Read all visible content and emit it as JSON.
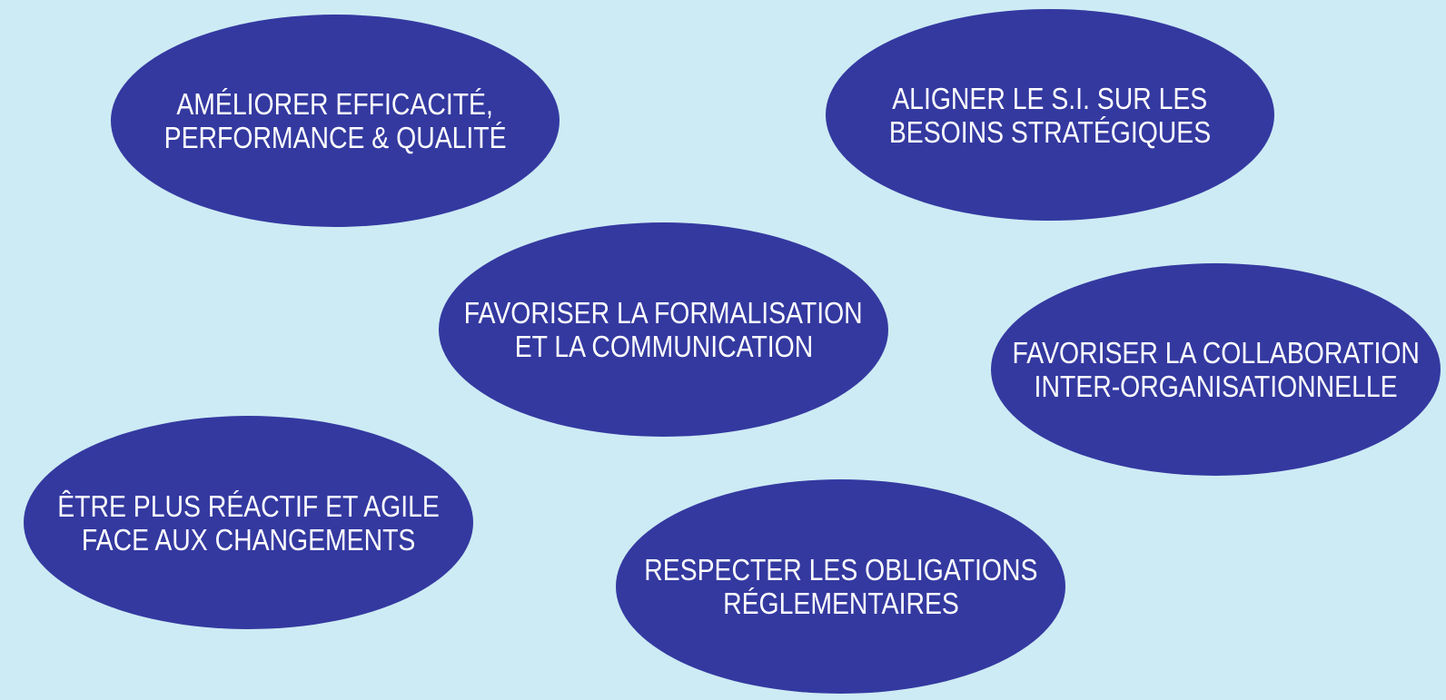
{
  "colors": {
    "background": "#cdebf4",
    "bubble_fill": "#3439a0",
    "bubble_text": "#ffffff"
  },
  "bubbles": [
    {
      "id": "ameliorer",
      "lines": [
        "AMÉLIORER EFFICACITÉ,",
        "PERFORMANCE & QUALITÉ"
      ]
    },
    {
      "id": "aligner",
      "lines": [
        "ALIGNER LE S.I. SUR LES",
        "BESOINS STRATÉGIQUES"
      ]
    },
    {
      "id": "formalisation",
      "lines": [
        "FAVORISER LA FORMALISATION",
        "ET LA COMMUNICATION"
      ]
    },
    {
      "id": "collaboration",
      "lines": [
        "FAVORISER LA COLLABORATION",
        "INTER-ORGANISATIONNELLE"
      ]
    },
    {
      "id": "reactif",
      "lines": [
        "ÊTRE PLUS RÉACTIF ET AGILE",
        "FACE AUX CHANGEMENTS"
      ]
    },
    {
      "id": "obligations",
      "lines": [
        "RESPECTER LES OBLIGATIONS",
        "RÉGLEMENTAIRES"
      ]
    }
  ]
}
